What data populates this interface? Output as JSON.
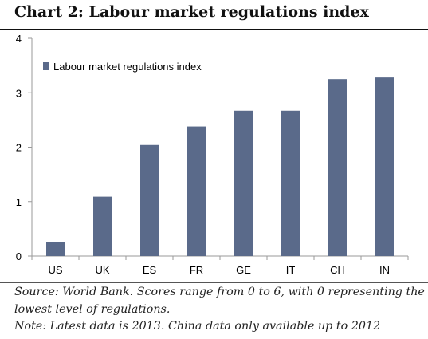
{
  "title": "Chart 2: Labour market regulations index",
  "source_note": "Source: World Bank. Scores range from 0 to 6, with 0  representing the lowest level of regulations.",
  "note": "Note: Latest data is 2013. China data only available up to 2012",
  "colors": {
    "bar": "#5a6a8a",
    "axis": "#9a9a9a",
    "text": "#000000"
  },
  "chart_data": {
    "type": "bar",
    "categories": [
      "US",
      "UK",
      "ES",
      "FR",
      "GE",
      "IT",
      "CH",
      "IN"
    ],
    "series": [
      {
        "name": "Labour market regulations index",
        "values": [
          0.25,
          1.09,
          2.04,
          2.38,
          2.67,
          2.67,
          3.25,
          3.28
        ]
      }
    ],
    "yticks": [
      "0",
      "1",
      "2",
      "3",
      "4"
    ],
    "ylim": [
      0,
      4
    ],
    "grid": false,
    "legend": "top-left"
  }
}
